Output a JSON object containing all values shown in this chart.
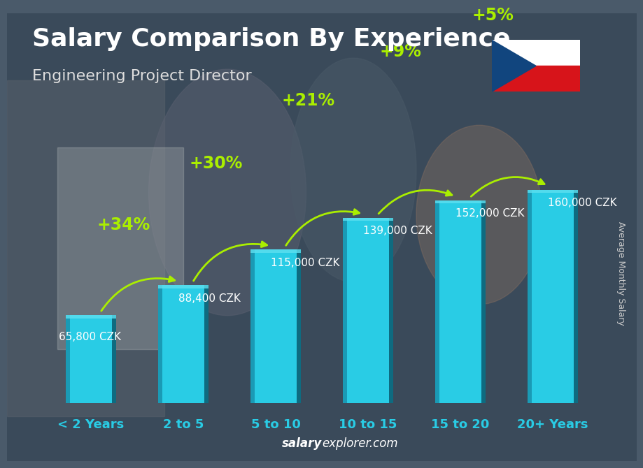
{
  "title": "Salary Comparison By Experience",
  "subtitle": "Engineering Project Director",
  "ylabel": "Average Monthly Salary",
  "footer_bold": "salary",
  "footer_normal": "explorer.com",
  "categories": [
    "< 2 Years",
    "2 to 5",
    "5 to 10",
    "10 to 15",
    "15 to 20",
    "20+ Years"
  ],
  "values": [
    65800,
    88400,
    115000,
    139000,
    152000,
    160000
  ],
  "value_labels": [
    "65,800 CZK",
    "88,400 CZK",
    "115,000 CZK",
    "139,000 CZK",
    "152,000 CZK",
    "160,000 CZK"
  ],
  "pct_labels": [
    "+34%",
    "+30%",
    "+21%",
    "+9%",
    "+5%"
  ],
  "bar_color_face": "#29cce5",
  "bar_color_left": "#1a9ab5",
  "bar_color_right": "#0e6b80",
  "bar_color_top": "#5de0f0",
  "bg_color": "#4a5a6a",
  "title_color": "#ffffff",
  "subtitle_color": "#dddddd",
  "value_color": "#ffffff",
  "pct_color": "#aaee00",
  "cat_color": "#29cce5",
  "footer_bold_color": "#ffffff",
  "footer_normal_color": "#aaaaaa",
  "ylabel_color": "#cccccc",
  "ylim_max": 195000,
  "bar_width": 0.55,
  "title_fontsize": 26,
  "subtitle_fontsize": 16,
  "cat_fontsize": 13,
  "value_fontsize": 11,
  "pct_fontsize": 17,
  "ylabel_fontsize": 9
}
